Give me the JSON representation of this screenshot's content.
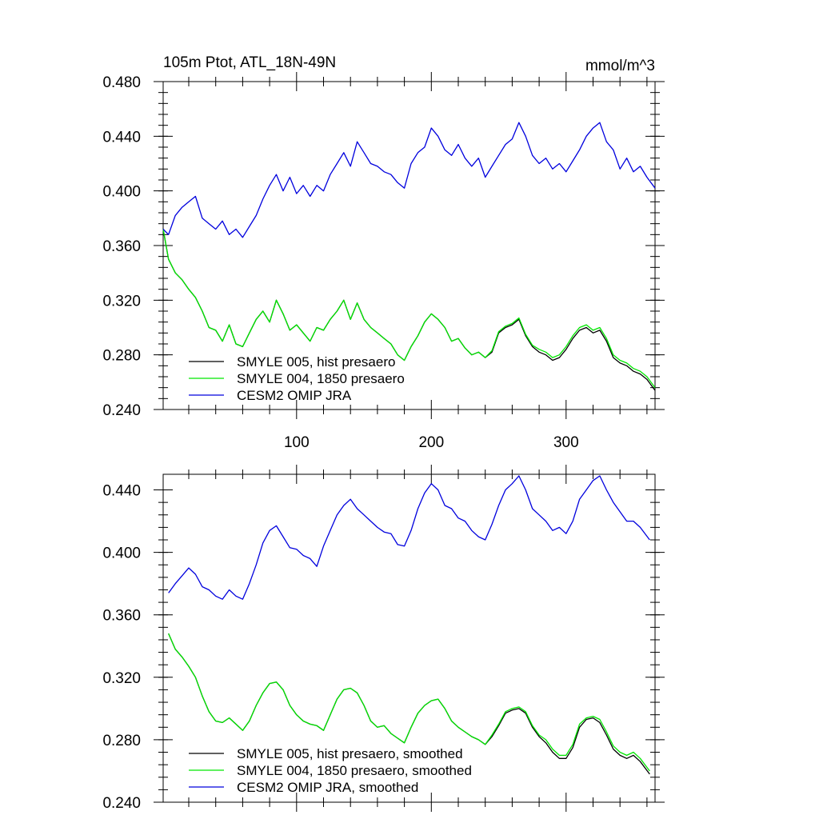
{
  "chart_data": [
    {
      "type": "line",
      "title": "105m Ptot, ATL_18N-49N",
      "units": "mmol/m^3",
      "xlim": [
        1,
        366
      ],
      "ylim": [
        0.24,
        0.48
      ],
      "x_ticks": [
        100,
        200,
        300
      ],
      "y_ticks": [
        "0.480",
        "0.440",
        "0.400",
        "0.360",
        "0.320",
        "0.280",
        "0.240"
      ],
      "legend_position": "bottom-left",
      "series": [
        {
          "name": "SMYLE 005, hist presaero",
          "color": "#000000",
          "x": [
            1,
            5,
            10,
            15,
            20,
            25,
            30,
            35,
            40,
            45,
            50,
            55,
            60,
            65,
            70,
            75,
            80,
            85,
            90,
            95,
            100,
            105,
            110,
            115,
            120,
            125,
            130,
            135,
            140,
            145,
            150,
            155,
            160,
            165,
            170,
            175,
            180,
            185,
            190,
            195,
            200,
            205,
            210,
            215,
            220,
            225,
            230,
            235,
            240,
            245,
            250,
            255,
            260,
            265,
            270,
            275,
            280,
            285,
            290,
            295,
            300,
            305,
            310,
            315,
            320,
            325,
            330,
            335,
            340,
            345,
            350,
            355,
            360,
            366
          ],
          "y": [
            0.372,
            0.35,
            0.34,
            0.335,
            0.328,
            0.322,
            0.312,
            0.3,
            0.298,
            0.29,
            0.302,
            0.288,
            0.286,
            0.296,
            0.306,
            0.312,
            0.304,
            0.32,
            0.31,
            0.298,
            0.302,
            0.296,
            0.29,
            0.3,
            0.298,
            0.306,
            0.312,
            0.32,
            0.306,
            0.318,
            0.306,
            0.3,
            0.296,
            0.292,
            0.288,
            0.28,
            0.276,
            0.286,
            0.294,
            0.304,
            0.31,
            0.306,
            0.3,
            0.29,
            0.292,
            0.285,
            0.28,
            0.282,
            0.278,
            0.282,
            0.296,
            0.3,
            0.302,
            0.306,
            0.294,
            0.286,
            0.282,
            0.28,
            0.276,
            0.278,
            0.284,
            0.292,
            0.298,
            0.3,
            0.296,
            0.298,
            0.29,
            0.278,
            0.274,
            0.272,
            0.268,
            0.266,
            0.262,
            0.254
          ]
        },
        {
          "name": "SMYLE 004, 1850 presaero",
          "color": "#00e600",
          "x": [
            1,
            5,
            10,
            15,
            20,
            25,
            30,
            35,
            40,
            45,
            50,
            55,
            60,
            65,
            70,
            75,
            80,
            85,
            90,
            95,
            100,
            105,
            110,
            115,
            120,
            125,
            130,
            135,
            140,
            145,
            150,
            155,
            160,
            165,
            170,
            175,
            180,
            185,
            190,
            195,
            200,
            205,
            210,
            215,
            220,
            225,
            230,
            235,
            240,
            245,
            250,
            255,
            260,
            265,
            270,
            275,
            280,
            285,
            290,
            295,
            300,
            305,
            310,
            315,
            320,
            325,
            330,
            335,
            340,
            345,
            350,
            355,
            360,
            366
          ],
          "y": [
            0.372,
            0.35,
            0.34,
            0.335,
            0.328,
            0.322,
            0.312,
            0.3,
            0.298,
            0.29,
            0.302,
            0.288,
            0.286,
            0.296,
            0.306,
            0.312,
            0.304,
            0.32,
            0.31,
            0.298,
            0.302,
            0.296,
            0.29,
            0.3,
            0.298,
            0.306,
            0.312,
            0.32,
            0.306,
            0.318,
            0.306,
            0.3,
            0.296,
            0.292,
            0.288,
            0.28,
            0.276,
            0.286,
            0.294,
            0.304,
            0.31,
            0.306,
            0.3,
            0.29,
            0.292,
            0.285,
            0.28,
            0.282,
            0.278,
            0.283,
            0.297,
            0.301,
            0.303,
            0.307,
            0.295,
            0.287,
            0.284,
            0.282,
            0.278,
            0.28,
            0.286,
            0.294,
            0.3,
            0.302,
            0.298,
            0.3,
            0.292,
            0.28,
            0.276,
            0.274,
            0.27,
            0.268,
            0.264,
            0.256
          ]
        },
        {
          "name": "CESM2 OMIP JRA",
          "color": "#0000dd",
          "x": [
            1,
            5,
            10,
            15,
            20,
            25,
            30,
            35,
            40,
            45,
            50,
            55,
            60,
            65,
            70,
            75,
            80,
            85,
            90,
            95,
            100,
            105,
            110,
            115,
            120,
            125,
            130,
            135,
            140,
            145,
            150,
            155,
            160,
            165,
            170,
            175,
            180,
            185,
            190,
            195,
            200,
            205,
            210,
            215,
            220,
            225,
            230,
            235,
            240,
            245,
            250,
            255,
            260,
            265,
            270,
            275,
            280,
            285,
            290,
            295,
            300,
            305,
            310,
            315,
            320,
            325,
            330,
            335,
            340,
            345,
            350,
            355,
            360,
            366
          ],
          "y": [
            0.372,
            0.368,
            0.382,
            0.388,
            0.392,
            0.396,
            0.38,
            0.376,
            0.372,
            0.378,
            0.368,
            0.372,
            0.366,
            0.374,
            0.382,
            0.394,
            0.404,
            0.412,
            0.4,
            0.41,
            0.398,
            0.404,
            0.396,
            0.404,
            0.4,
            0.412,
            0.42,
            0.428,
            0.418,
            0.436,
            0.428,
            0.42,
            0.418,
            0.414,
            0.412,
            0.406,
            0.402,
            0.42,
            0.428,
            0.432,
            0.446,
            0.44,
            0.43,
            0.426,
            0.434,
            0.424,
            0.418,
            0.424,
            0.41,
            0.418,
            0.426,
            0.434,
            0.438,
            0.45,
            0.44,
            0.426,
            0.42,
            0.424,
            0.416,
            0.42,
            0.414,
            0.422,
            0.43,
            0.44,
            0.446,
            0.45,
            0.436,
            0.43,
            0.416,
            0.424,
            0.414,
            0.418,
            0.41,
            0.402
          ]
        }
      ]
    },
    {
      "type": "line",
      "xlim": [
        1,
        366
      ],
      "ylim": [
        0.24,
        0.45
      ],
      "y_ticks": [
        "0.440",
        "0.400",
        "0.360",
        "0.320",
        "0.280",
        "0.240"
      ],
      "legend_position": "bottom-left",
      "series": [
        {
          "name": "SMYLE 005, hist presaero, smoothed",
          "color": "#000000",
          "x": [
            5,
            10,
            15,
            20,
            25,
            30,
            35,
            40,
            45,
            50,
            55,
            60,
            65,
            70,
            75,
            80,
            85,
            90,
            95,
            100,
            105,
            110,
            115,
            120,
            125,
            130,
            135,
            140,
            145,
            150,
            155,
            160,
            165,
            170,
            175,
            180,
            185,
            190,
            195,
            200,
            205,
            210,
            215,
            220,
            225,
            230,
            235,
            240,
            245,
            250,
            255,
            260,
            265,
            270,
            275,
            280,
            285,
            290,
            295,
            300,
            305,
            310,
            315,
            320,
            325,
            330,
            335,
            340,
            345,
            350,
            355,
            362
          ],
          "y": [
            0.348,
            0.338,
            0.333,
            0.327,
            0.32,
            0.308,
            0.298,
            0.292,
            0.291,
            0.294,
            0.29,
            0.286,
            0.292,
            0.302,
            0.31,
            0.316,
            0.317,
            0.312,
            0.302,
            0.296,
            0.292,
            0.29,
            0.289,
            0.286,
            0.296,
            0.306,
            0.312,
            0.313,
            0.31,
            0.302,
            0.292,
            0.288,
            0.289,
            0.284,
            0.281,
            0.278,
            0.288,
            0.297,
            0.302,
            0.305,
            0.306,
            0.3,
            0.292,
            0.288,
            0.285,
            0.282,
            0.28,
            0.277,
            0.282,
            0.289,
            0.297,
            0.299,
            0.3,
            0.297,
            0.288,
            0.282,
            0.278,
            0.272,
            0.268,
            0.268,
            0.275,
            0.288,
            0.293,
            0.294,
            0.291,
            0.283,
            0.274,
            0.27,
            0.268,
            0.27,
            0.266,
            0.258
          ]
        },
        {
          "name": "SMYLE 004, 1850 presaero, smoothed",
          "color": "#00e600",
          "x": [
            5,
            10,
            15,
            20,
            25,
            30,
            35,
            40,
            45,
            50,
            55,
            60,
            65,
            70,
            75,
            80,
            85,
            90,
            95,
            100,
            105,
            110,
            115,
            120,
            125,
            130,
            135,
            140,
            145,
            150,
            155,
            160,
            165,
            170,
            175,
            180,
            185,
            190,
            195,
            200,
            205,
            210,
            215,
            220,
            225,
            230,
            235,
            240,
            245,
            250,
            255,
            260,
            265,
            270,
            275,
            280,
            285,
            290,
            295,
            300,
            305,
            310,
            315,
            320,
            325,
            330,
            335,
            340,
            345,
            350,
            355,
            362
          ],
          "y": [
            0.348,
            0.338,
            0.333,
            0.327,
            0.32,
            0.308,
            0.298,
            0.292,
            0.291,
            0.294,
            0.29,
            0.286,
            0.292,
            0.302,
            0.31,
            0.316,
            0.317,
            0.312,
            0.302,
            0.296,
            0.292,
            0.29,
            0.289,
            0.286,
            0.296,
            0.306,
            0.312,
            0.313,
            0.31,
            0.302,
            0.292,
            0.288,
            0.289,
            0.284,
            0.281,
            0.278,
            0.288,
            0.297,
            0.302,
            0.305,
            0.306,
            0.3,
            0.292,
            0.288,
            0.285,
            0.282,
            0.28,
            0.277,
            0.283,
            0.29,
            0.298,
            0.3,
            0.301,
            0.298,
            0.289,
            0.283,
            0.28,
            0.274,
            0.27,
            0.27,
            0.277,
            0.29,
            0.294,
            0.295,
            0.293,
            0.285,
            0.276,
            0.272,
            0.27,
            0.272,
            0.268,
            0.26
          ]
        },
        {
          "name": "CESM2 OMIP JRA, smoothed",
          "color": "#0000dd",
          "x": [
            5,
            10,
            15,
            20,
            25,
            30,
            35,
            40,
            45,
            50,
            55,
            60,
            65,
            70,
            75,
            80,
            85,
            90,
            95,
            100,
            105,
            110,
            115,
            120,
            125,
            130,
            135,
            140,
            145,
            150,
            155,
            160,
            165,
            170,
            175,
            180,
            185,
            190,
            195,
            200,
            205,
            210,
            215,
            220,
            225,
            230,
            235,
            240,
            245,
            250,
            255,
            260,
            265,
            270,
            275,
            280,
            285,
            290,
            295,
            300,
            305,
            310,
            315,
            320,
            325,
            330,
            335,
            340,
            345,
            350,
            355,
            362
          ],
          "y": [
            0.374,
            0.38,
            0.385,
            0.39,
            0.386,
            0.378,
            0.376,
            0.372,
            0.37,
            0.376,
            0.372,
            0.37,
            0.38,
            0.392,
            0.406,
            0.414,
            0.417,
            0.41,
            0.403,
            0.402,
            0.398,
            0.396,
            0.391,
            0.404,
            0.414,
            0.424,
            0.43,
            0.434,
            0.428,
            0.424,
            0.42,
            0.416,
            0.413,
            0.412,
            0.405,
            0.404,
            0.414,
            0.428,
            0.438,
            0.444,
            0.44,
            0.43,
            0.428,
            0.422,
            0.42,
            0.414,
            0.41,
            0.408,
            0.418,
            0.43,
            0.44,
            0.444,
            0.449,
            0.44,
            0.428,
            0.424,
            0.42,
            0.414,
            0.416,
            0.412,
            0.42,
            0.434,
            0.44,
            0.446,
            0.449,
            0.44,
            0.432,
            0.426,
            0.42,
            0.42,
            0.416,
            0.408
          ]
        }
      ]
    }
  ]
}
